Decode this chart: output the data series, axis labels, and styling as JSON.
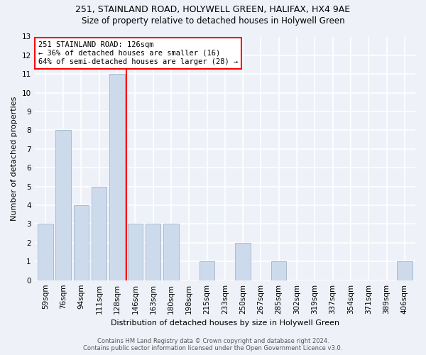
{
  "title1": "251, STAINLAND ROAD, HOLYWELL GREEN, HALIFAX, HX4 9AE",
  "title2": "Size of property relative to detached houses in Holywell Green",
  "xlabel": "Distribution of detached houses by size in Holywell Green",
  "ylabel": "Number of detached properties",
  "footer1": "Contains HM Land Registry data © Crown copyright and database right 2024.",
  "footer2": "Contains public sector information licensed under the Open Government Licence v3.0.",
  "categories": [
    "59sqm",
    "76sqm",
    "94sqm",
    "111sqm",
    "128sqm",
    "146sqm",
    "163sqm",
    "180sqm",
    "198sqm",
    "215sqm",
    "233sqm",
    "250sqm",
    "267sqm",
    "285sqm",
    "302sqm",
    "319sqm",
    "337sqm",
    "354sqm",
    "371sqm",
    "389sqm",
    "406sqm"
  ],
  "values": [
    3,
    8,
    4,
    5,
    11,
    3,
    3,
    3,
    0,
    1,
    0,
    2,
    0,
    1,
    0,
    0,
    0,
    0,
    0,
    0,
    1
  ],
  "bar_color": "#ccdaec",
  "bar_edge_color": "#aabbd0",
  "vline_x_index": 4,
  "vline_color": "red",
  "annotation_text": "251 STAINLAND ROAD: 126sqm\n← 36% of detached houses are smaller (16)\n64% of semi-detached houses are larger (28) →",
  "annotation_box_color": "white",
  "annotation_box_edge": "red",
  "ylim": [
    0,
    13
  ],
  "yticks": [
    0,
    1,
    2,
    3,
    4,
    5,
    6,
    7,
    8,
    9,
    10,
    11,
    12,
    13
  ],
  "bg_color": "#eef2f8",
  "grid_color": "white",
  "title1_fontsize": 9,
  "title2_fontsize": 8.5,
  "xlabel_fontsize": 8,
  "ylabel_fontsize": 8,
  "tick_fontsize": 7.5,
  "footer_fontsize": 6
}
